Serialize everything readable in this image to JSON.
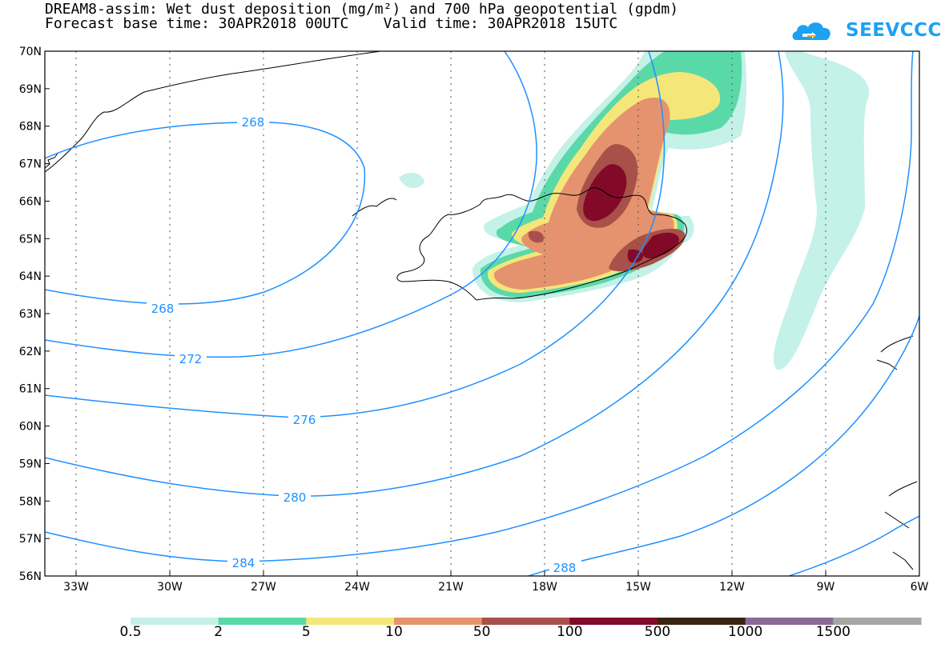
{
  "title": {
    "line1": "DREAM8-assim: Wet dust deposition (mg/m²) and 700 hPa geopotential (gpdm)",
    "line2": "Forecast base time: 30APR2018 00UTC    Valid time: 30APR2018 15UTC"
  },
  "logo": {
    "text": "SEEVCCC",
    "icon": "cloud-icon",
    "color": "#1da1f2"
  },
  "map": {
    "lon_range": [
      -34,
      -6
    ],
    "lat_range": [
      56,
      70
    ],
    "lat_labels": [
      "70N",
      "69N",
      "68N",
      "67N",
      "66N",
      "65N",
      "64N",
      "63N",
      "62N",
      "61N",
      "60N",
      "59N",
      "58N",
      "57N",
      "56N"
    ],
    "lon_labels": [
      "33W",
      "30W",
      "27W",
      "24W",
      "21W",
      "18W",
      "15W",
      "12W",
      "9W",
      "6W"
    ]
  },
  "contours": {
    "color": "#1e90ff",
    "labels": [
      "268",
      "268",
      "272",
      "276",
      "280",
      "284",
      "288"
    ]
  },
  "colorbar": {
    "ticks": [
      "0.5",
      "2",
      "5",
      "10",
      "50",
      "100",
      "500",
      "1000",
      "1500"
    ],
    "colors": [
      "#c4f1e8",
      "#5ad9a8",
      "#f5e67a",
      "#e5936e",
      "#a8504a",
      "#820a28",
      "#3b2314",
      "#8a6a96",
      "#a6a6a6"
    ]
  }
}
